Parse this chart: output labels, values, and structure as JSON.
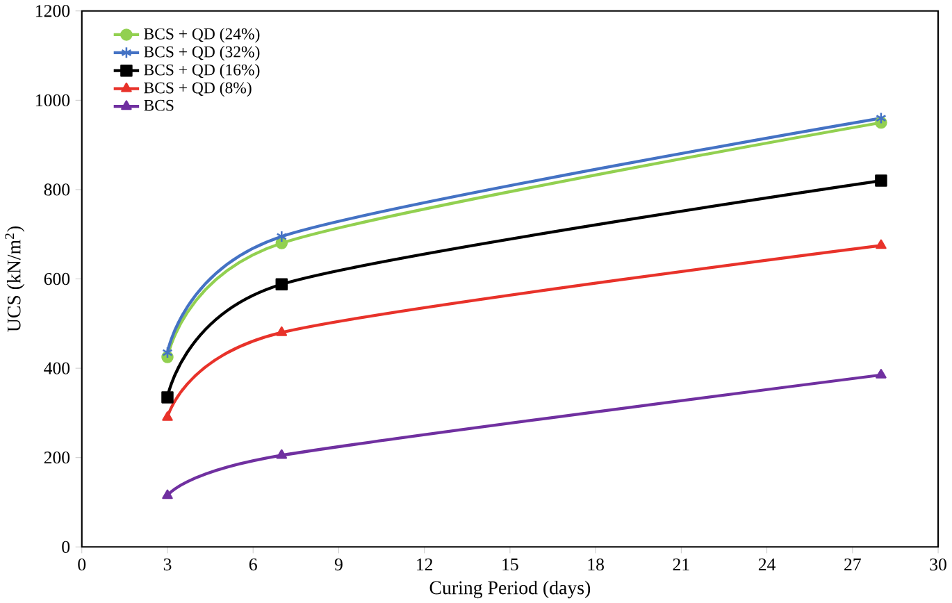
{
  "chart_data": {
    "type": "line",
    "xlabel": "Curing Period (days)",
    "ylabel": "UCS  (kN/m$^{2}$)",
    "x": [
      3,
      7,
      28
    ],
    "xlim": [
      0,
      30
    ],
    "xticks": [
      0,
      3,
      6,
      9,
      12,
      15,
      18,
      21,
      24,
      27,
      30
    ],
    "ylim": [
      0,
      1200
    ],
    "yticks": [
      0,
      200,
      400,
      600,
      800,
      1000,
      1200
    ],
    "grid": false,
    "legend": "top left",
    "line_style": "solid",
    "series": [
      {
        "name": "BCS + QD (24%)",
        "color": "#92d050",
        "marker": "circle",
        "values": [
          425,
          680,
          950
        ]
      },
      {
        "name": "BCS + QD (32%)",
        "color": "#4472c4",
        "marker": "cross",
        "values": [
          435,
          695,
          960
        ]
      },
      {
        "name": "BCS + QD (16%)",
        "color": "#000000",
        "marker": "square",
        "values": [
          335,
          588,
          820
        ]
      },
      {
        "name": "BCS + QD (8%)",
        "color": "#e8322a",
        "marker": "triangle",
        "values": [
          290,
          480,
          675
        ]
      },
      {
        "name": "BCS",
        "color": "#7030a0",
        "marker": "triangle",
        "values": [
          115,
          205,
          385
        ]
      }
    ]
  }
}
